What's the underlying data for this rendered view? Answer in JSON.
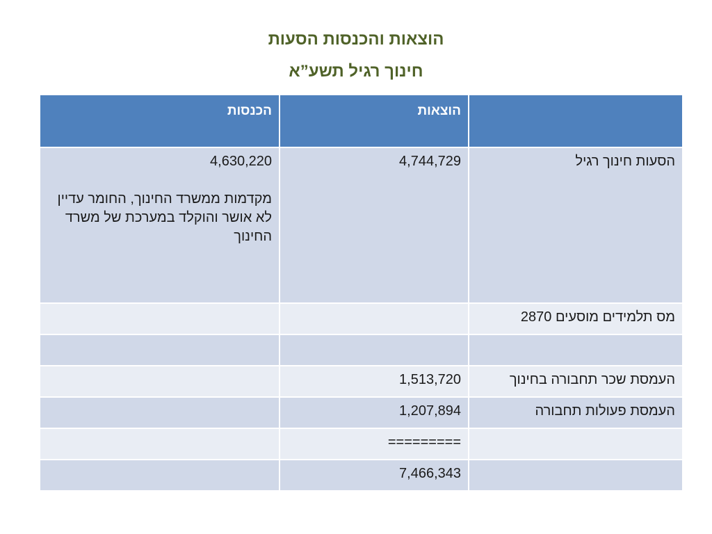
{
  "title_line1": "הוצאות והכנסות הסעות",
  "title_line2": "חינוך רגיל תשע”א",
  "table": {
    "headers": [
      "",
      "הוצאות",
      "הכנסות"
    ],
    "rows": [
      {
        "label": "הסעות חינוך רגיל",
        "expenses": "4,744,729",
        "income": "4,630,220",
        "income_note": "מקדמות ממשרד החינוך, החומר עדיין לא אושר והוקלד במערכת של משרד החינוך"
      },
      {
        "label": "מס תלמידים מוסעים 2870",
        "expenses": "",
        "income": ""
      },
      {
        "label": "",
        "expenses": "",
        "income": ""
      },
      {
        "label": "העמסת שכר תחבורה בחינוך",
        "expenses": "1,513,720",
        "income": ""
      },
      {
        "label": "העמסת פעולות תחבורה",
        "expenses": "1,207,894",
        "income": ""
      },
      {
        "label": "",
        "expenses": "=========",
        "income": ""
      },
      {
        "label": "",
        "expenses": "7,466,343",
        "income": ""
      }
    ]
  },
  "colors": {
    "title": "#4f6228",
    "header_bg": "#4f81bd",
    "row_dark": "#d0d8e8",
    "row_light": "#e9edf4"
  }
}
